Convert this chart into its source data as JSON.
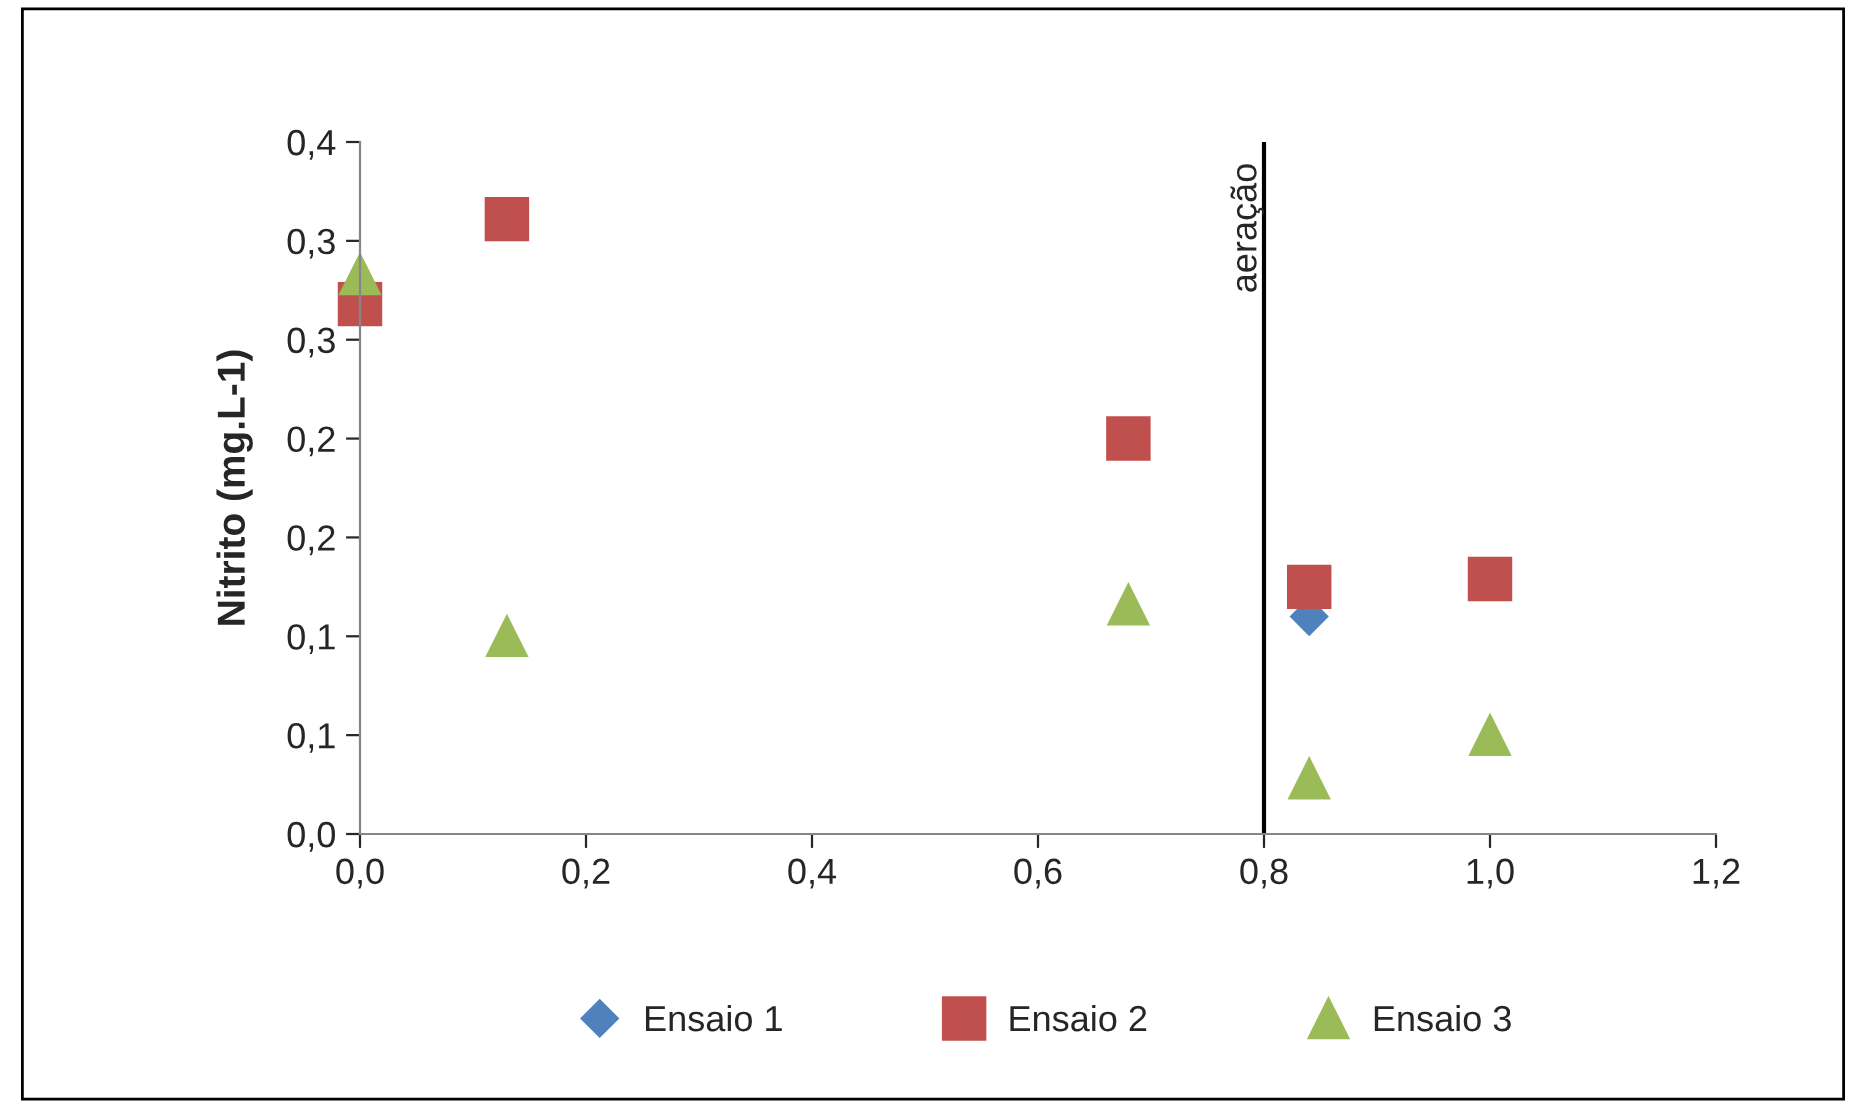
{
  "chart_data": {
    "type": "scatter",
    "ylabel": "Nitrito (mg.L-1)",
    "x": [
      0.0,
      0.13,
      0.68,
      0.84,
      1.0
    ],
    "series": [
      {
        "name": "Ensaio 1",
        "color": "#4f81bd",
        "marker": "diamond",
        "values": [
          null,
          null,
          null,
          0.11,
          null
        ]
      },
      {
        "name": "Ensaio 2",
        "color": "#c0504d",
        "marker": "square",
        "values": [
          0.268,
          0.311,
          0.2,
          0.125,
          0.129
        ]
      },
      {
        "name": "Ensaio 3",
        "color": "#9bbb59",
        "marker": "triangle",
        "values": [
          0.283,
          0.1,
          0.116,
          0.028,
          0.05
        ]
      }
    ],
    "xlim": [
      0,
      1.2
    ],
    "xticks": [
      {
        "value": 0,
        "label": "0,0"
      },
      {
        "value": 0.2,
        "label": "0,2"
      },
      {
        "value": 0.4,
        "label": "0,4"
      },
      {
        "value": 0.6,
        "label": "0,6"
      },
      {
        "value": 0.8,
        "label": "0,8"
      },
      {
        "value": 1.0,
        "label": "1,0"
      },
      {
        "value": 1.2,
        "label": "1,2"
      }
    ],
    "ylim": [
      0,
      0.35
    ],
    "yticks": [
      {
        "value": 0,
        "label": "0,0"
      },
      {
        "value": 0.05,
        "label": "0,1"
      },
      {
        "value": 0.1,
        "label": "0,1"
      },
      {
        "value": 0.15,
        "label": "0,2"
      },
      {
        "value": 0.2,
        "label": "0,2"
      },
      {
        "value": 0.25,
        "label": "0,3"
      },
      {
        "value": 0.3,
        "label": "0,3"
      },
      {
        "value": 0.35,
        "label": "0,4"
      }
    ],
    "ref_lines": [
      {
        "axis": "x",
        "value": 0.8,
        "label": "aeração",
        "color": "#000000"
      }
    ],
    "grid": false,
    "legend": "bottom"
  }
}
